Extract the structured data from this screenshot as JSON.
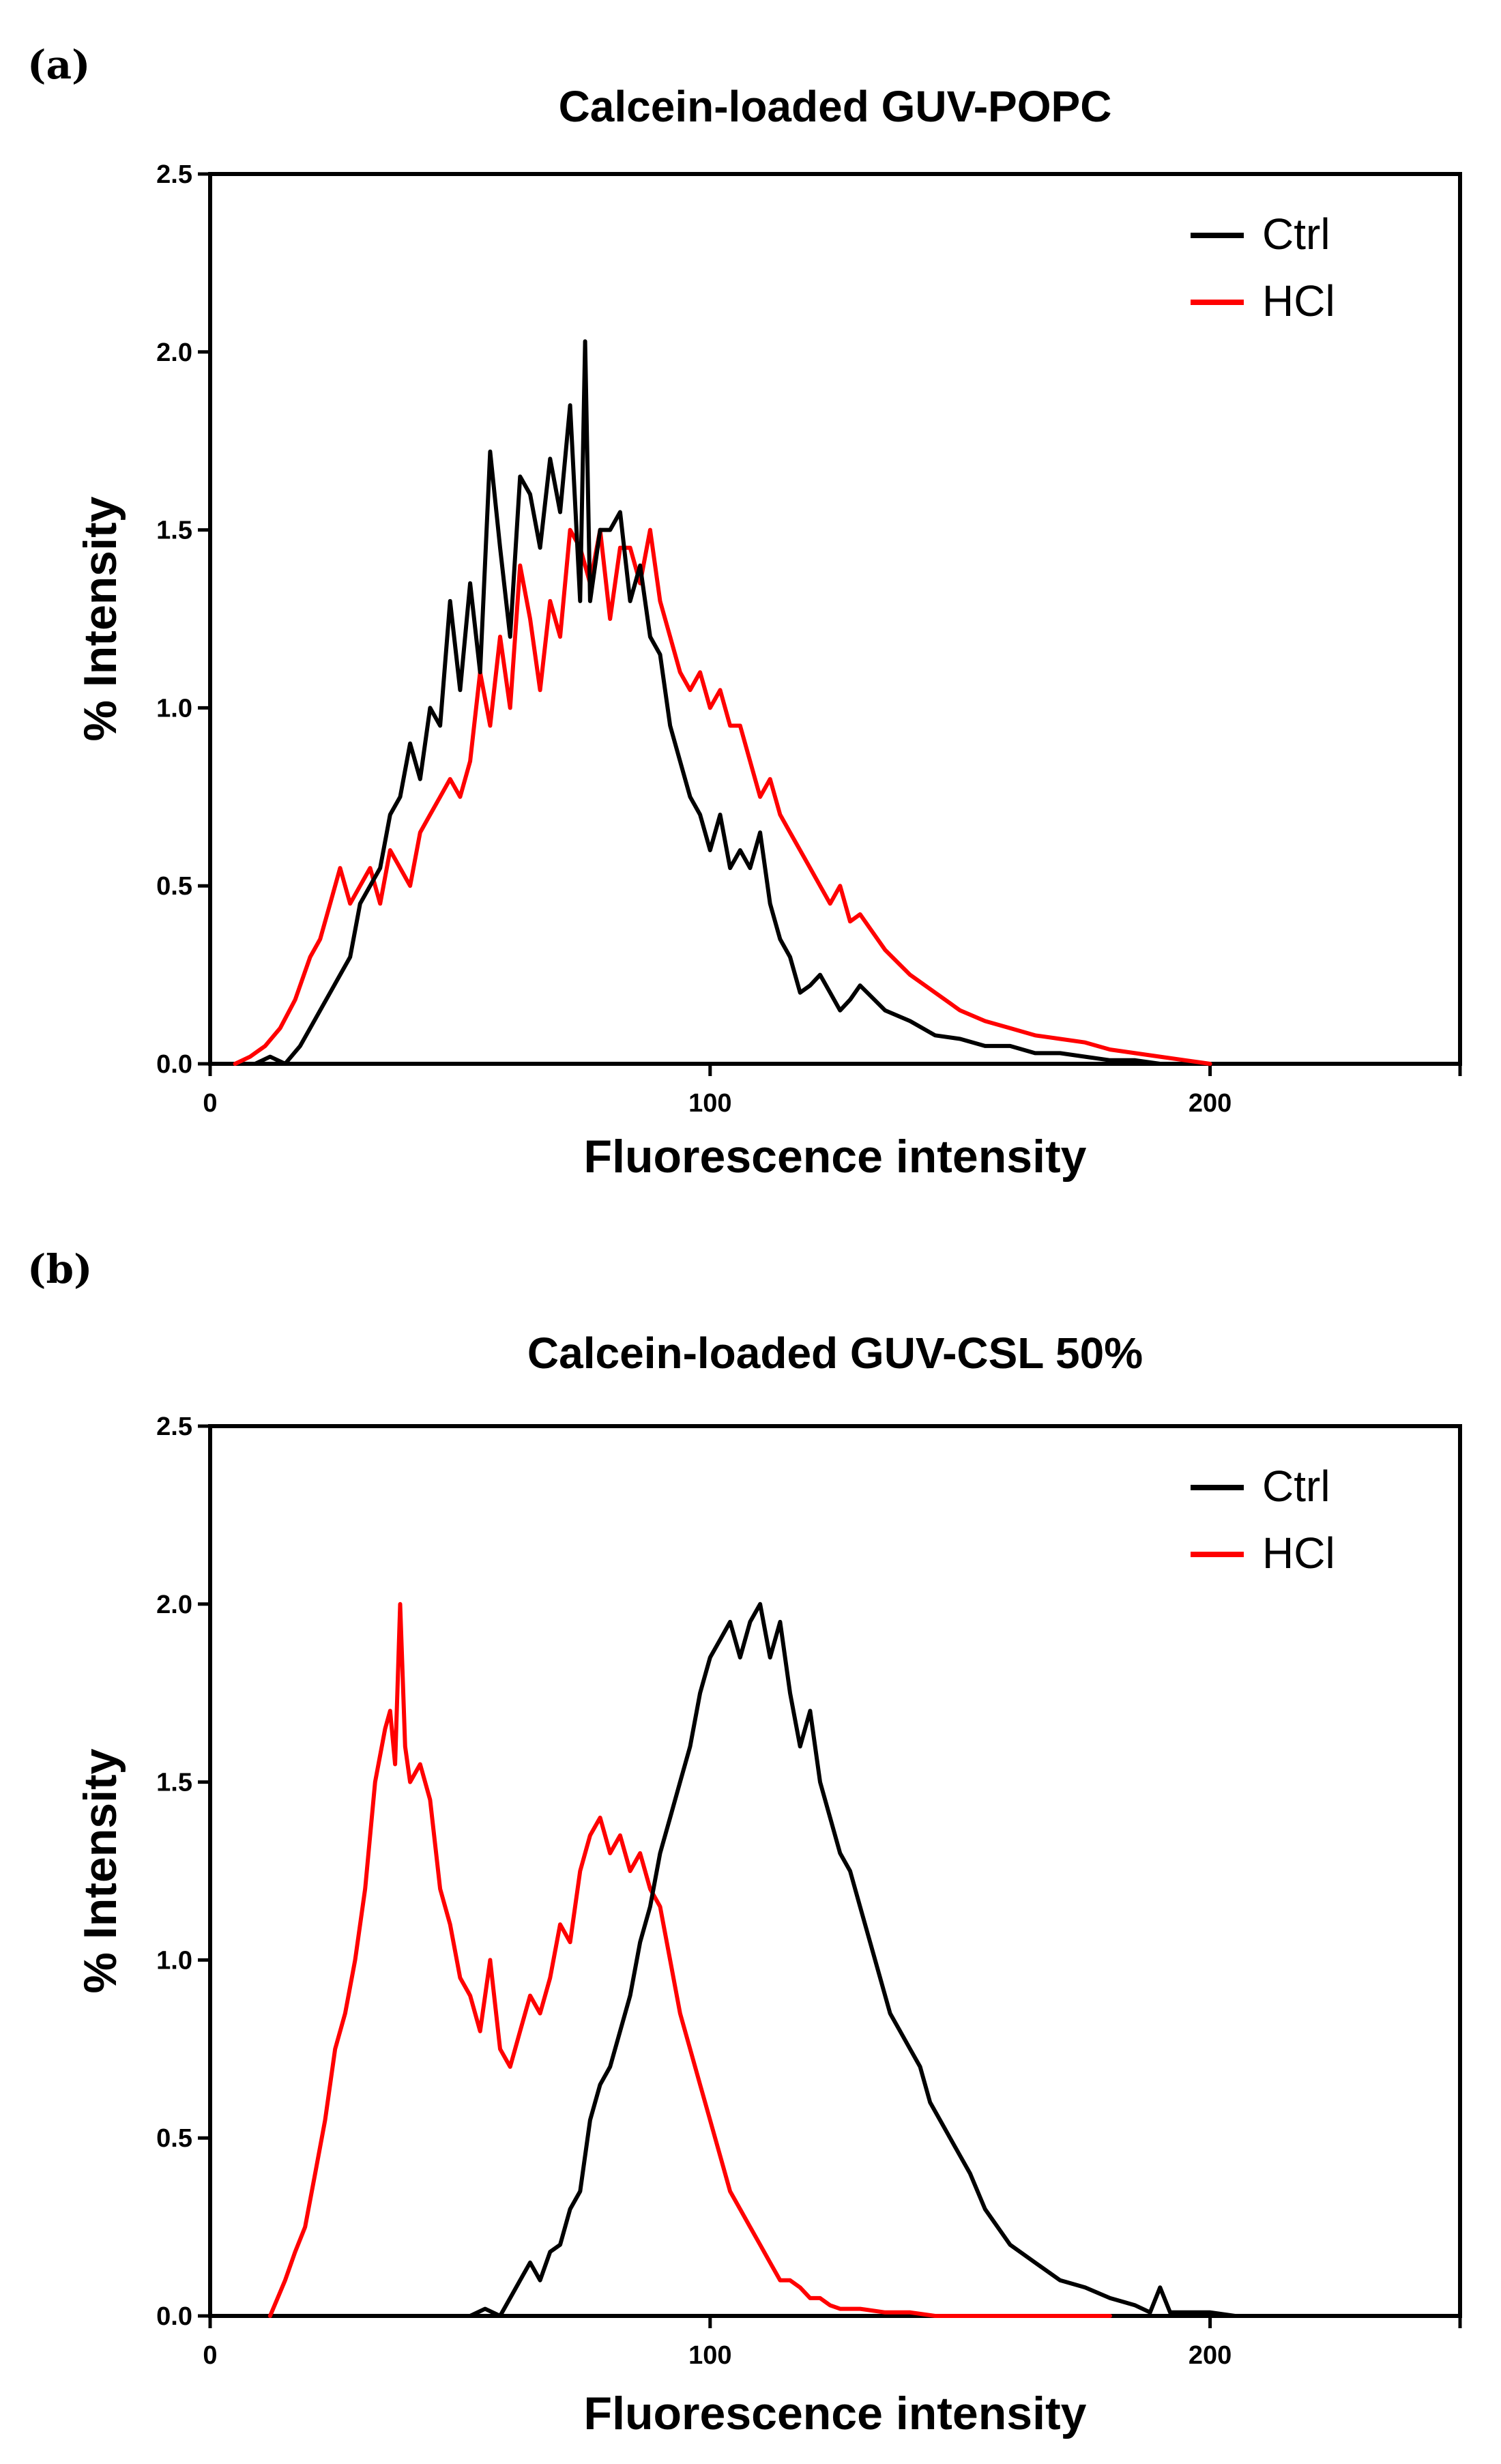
{
  "chart_data": [
    {
      "panel_label": "(a)",
      "type": "line",
      "title": "Calcein-loaded GUV-POPC",
      "xlabel": "Fluorescence intensity",
      "ylabel": "% Intensity",
      "xlim": [
        0,
        250
      ],
      "ylim": [
        0,
        2.5
      ],
      "xticks": [
        0,
        100,
        200
      ],
      "xtick_labels": [
        "0",
        "100",
        "200"
      ],
      "yticks": [
        0,
        0.5,
        1.0,
        1.5,
        2.0,
        2.5
      ],
      "ytick_labels": [
        "0.0",
        "0.5",
        "1.0",
        "1.5",
        "2.0",
        "2.5"
      ],
      "legend_position": "top-right",
      "series": [
        {
          "name": "Ctrl",
          "color": "#000000",
          "x": [
            9,
            12,
            15,
            18,
            20,
            22,
            24,
            26,
            28,
            30,
            32,
            34,
            36,
            38,
            40,
            42,
            44,
            46,
            48,
            50,
            52,
            54,
            56,
            58,
            60,
            62,
            64,
            66,
            68,
            70,
            72,
            74,
            75,
            76,
            78,
            80,
            82,
            84,
            86,
            88,
            90,
            92,
            94,
            96,
            98,
            100,
            102,
            104,
            106,
            108,
            110,
            112,
            114,
            116,
            118,
            120,
            122,
            124,
            126,
            128,
            130,
            135,
            140,
            145,
            150,
            155,
            160,
            165,
            170,
            175,
            180,
            185,
            190
          ],
          "values": [
            0,
            0.02,
            0,
            0.05,
            0.1,
            0.15,
            0.2,
            0.25,
            0.3,
            0.45,
            0.5,
            0.55,
            0.7,
            0.75,
            0.9,
            0.8,
            1.0,
            0.95,
            1.3,
            1.05,
            1.35,
            1.1,
            1.72,
            1.45,
            1.2,
            1.65,
            1.6,
            1.45,
            1.7,
            1.55,
            1.85,
            1.3,
            2.03,
            1.3,
            1.5,
            1.5,
            1.55,
            1.3,
            1.4,
            1.2,
            1.15,
            0.95,
            0.85,
            0.75,
            0.7,
            0.6,
            0.7,
            0.55,
            0.6,
            0.55,
            0.65,
            0.45,
            0.35,
            0.3,
            0.2,
            0.22,
            0.25,
            0.2,
            0.15,
            0.18,
            0.22,
            0.15,
            0.12,
            0.08,
            0.07,
            0.05,
            0.05,
            0.03,
            0.03,
            0.02,
            0.01,
            0.01,
            0
          ]
        },
        {
          "name": "HCl",
          "color": "#ff0000",
          "x": [
            5,
            8,
            11,
            14,
            17,
            20,
            22,
            24,
            26,
            28,
            30,
            32,
            34,
            36,
            38,
            40,
            42,
            44,
            46,
            48,
            50,
            52,
            54,
            56,
            58,
            60,
            62,
            64,
            66,
            68,
            70,
            72,
            74,
            76,
            78,
            80,
            82,
            84,
            86,
            88,
            90,
            92,
            94,
            96,
            98,
            100,
            102,
            104,
            106,
            108,
            110,
            112,
            114,
            116,
            118,
            120,
            122,
            124,
            126,
            128,
            130,
            132,
            135,
            140,
            145,
            150,
            155,
            160,
            165,
            170,
            175,
            180,
            185,
            190,
            195,
            200
          ],
          "values": [
            0,
            0.02,
            0.05,
            0.1,
            0.18,
            0.3,
            0.35,
            0.45,
            0.55,
            0.45,
            0.5,
            0.55,
            0.45,
            0.6,
            0.55,
            0.5,
            0.65,
            0.7,
            0.75,
            0.8,
            0.75,
            0.85,
            1.1,
            0.95,
            1.2,
            1.0,
            1.4,
            1.25,
            1.05,
            1.3,
            1.2,
            1.5,
            1.45,
            1.35,
            1.5,
            1.25,
            1.45,
            1.45,
            1.35,
            1.5,
            1.3,
            1.2,
            1.1,
            1.05,
            1.1,
            1.0,
            1.05,
            0.95,
            0.95,
            0.85,
            0.75,
            0.8,
            0.7,
            0.65,
            0.6,
            0.55,
            0.5,
            0.45,
            0.5,
            0.4,
            0.42,
            0.38,
            0.32,
            0.25,
            0.2,
            0.15,
            0.12,
            0.1,
            0.08,
            0.07,
            0.06,
            0.04,
            0.03,
            0.02,
            0.01,
            0
          ]
        }
      ]
    },
    {
      "panel_label": "(b)",
      "type": "line",
      "title": "Calcein-loaded GUV-CSL 50%",
      "xlabel": "Fluorescence intensity",
      "ylabel": "% Intensity",
      "xlim": [
        0,
        250
      ],
      "ylim": [
        0,
        2.5
      ],
      "xticks": [
        0,
        100,
        200
      ],
      "xtick_labels": [
        "0",
        "100",
        "200"
      ],
      "yticks": [
        0,
        0.5,
        1.0,
        1.5,
        2.0,
        2.5
      ],
      "ytick_labels": [
        "0.0",
        "0.5",
        "1.0",
        "1.5",
        "2.0",
        "2.5"
      ],
      "legend_position": "top-right",
      "series": [
        {
          "name": "Ctrl",
          "color": "#000000",
          "x": [
            52,
            55,
            58,
            60,
            62,
            64,
            66,
            68,
            70,
            72,
            74,
            76,
            78,
            80,
            82,
            84,
            86,
            88,
            90,
            92,
            94,
            96,
            98,
            100,
            102,
            104,
            106,
            108,
            110,
            112,
            114,
            116,
            118,
            120,
            122,
            124,
            126,
            128,
            130,
            132,
            134,
            136,
            138,
            140,
            142,
            144,
            146,
            148,
            150,
            152,
            155,
            160,
            165,
            170,
            175,
            180,
            185,
            188,
            190,
            192,
            195,
            200,
            205,
            210
          ],
          "values": [
            0,
            0.02,
            0,
            0.05,
            0.1,
            0.15,
            0.1,
            0.18,
            0.2,
            0.3,
            0.35,
            0.55,
            0.65,
            0.7,
            0.8,
            0.9,
            1.05,
            1.15,
            1.3,
            1.4,
            1.5,
            1.6,
            1.75,
            1.85,
            1.9,
            1.95,
            1.85,
            1.95,
            2.0,
            1.85,
            1.95,
            1.75,
            1.6,
            1.7,
            1.5,
            1.4,
            1.3,
            1.25,
            1.15,
            1.05,
            0.95,
            0.85,
            0.8,
            0.75,
            0.7,
            0.6,
            0.55,
            0.5,
            0.45,
            0.4,
            0.3,
            0.2,
            0.15,
            0.1,
            0.08,
            0.05,
            0.03,
            0.01,
            0.08,
            0.01,
            0.01,
            0.01,
            0,
            0
          ]
        },
        {
          "name": "HCl",
          "color": "#ff0000",
          "x": [
            12,
            15,
            17,
            19,
            21,
            23,
            25,
            27,
            29,
            31,
            33,
            35,
            36,
            37,
            38,
            39,
            40,
            42,
            44,
            46,
            48,
            50,
            52,
            54,
            56,
            58,
            60,
            62,
            64,
            66,
            68,
            70,
            72,
            74,
            76,
            78,
            80,
            82,
            84,
            86,
            88,
            90,
            92,
            94,
            96,
            98,
            100,
            102,
            104,
            106,
            108,
            110,
            112,
            114,
            116,
            118,
            120,
            122,
            124,
            126,
            128,
            130,
            135,
            140,
            145,
            150,
            155,
            160,
            165,
            170,
            175,
            180
          ],
          "values": [
            0,
            0.1,
            0.18,
            0.25,
            0.4,
            0.55,
            0.75,
            0.85,
            1.0,
            1.2,
            1.5,
            1.65,
            1.7,
            1.55,
            2.0,
            1.6,
            1.5,
            1.55,
            1.45,
            1.2,
            1.1,
            0.95,
            0.9,
            0.8,
            1.0,
            0.75,
            0.7,
            0.8,
            0.9,
            0.85,
            0.95,
            1.1,
            1.05,
            1.25,
            1.35,
            1.4,
            1.3,
            1.35,
            1.25,
            1.3,
            1.2,
            1.15,
            1.0,
            0.85,
            0.75,
            0.65,
            0.55,
            0.45,
            0.35,
            0.3,
            0.25,
            0.2,
            0.15,
            0.1,
            0.1,
            0.08,
            0.05,
            0.05,
            0.03,
            0.02,
            0.02,
            0.02,
            0.01,
            0.01,
            0,
            0,
            0,
            0,
            0,
            0,
            0,
            0
          ]
        }
      ]
    }
  ]
}
